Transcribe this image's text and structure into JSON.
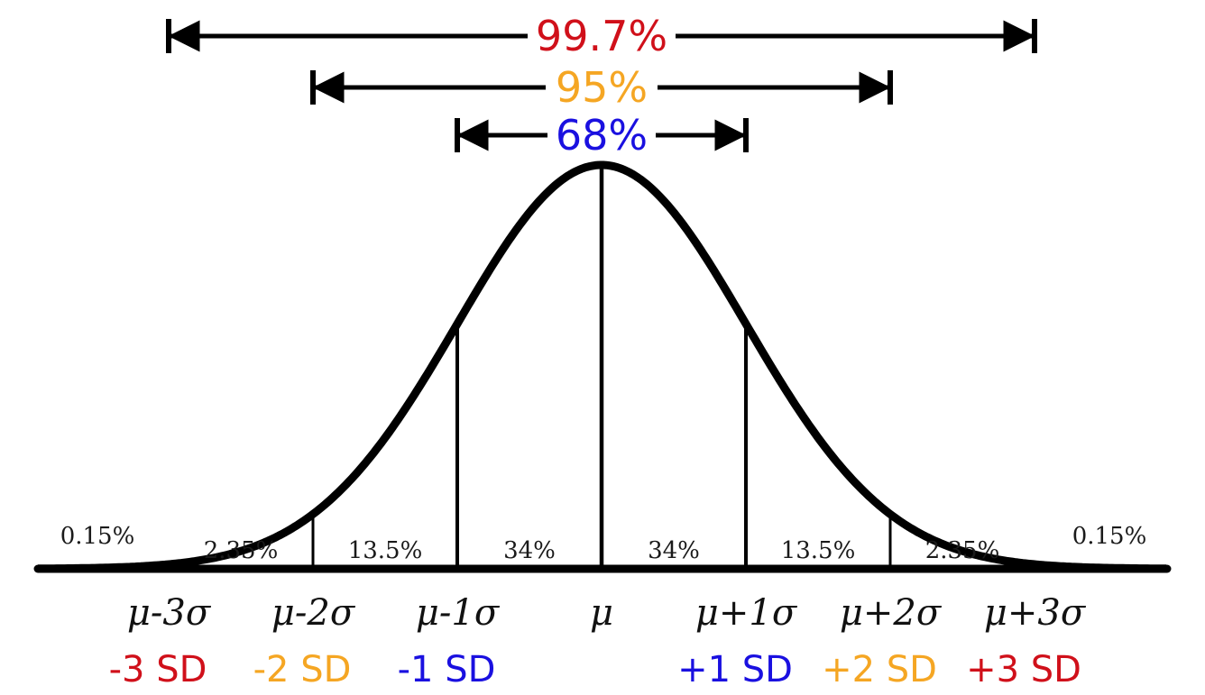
{
  "colors": {
    "curve": "#000000",
    "red": "#d0101a",
    "orange": "#f5a623",
    "blue": "#1a10e0"
  },
  "ranges": [
    {
      "label": "99.7%",
      "color": "red",
      "from": -3,
      "to": 3
    },
    {
      "label": "95%",
      "color": "orange",
      "from": -2,
      "to": 2
    },
    {
      "label": "68%",
      "color": "blue",
      "from": -1,
      "to": 1
    }
  ],
  "regions": [
    {
      "label": "0.15%"
    },
    {
      "label": "2.35%"
    },
    {
      "label": "13.5%"
    },
    {
      "label": "34%"
    },
    {
      "label": "34%"
    },
    {
      "label": "13.5%"
    },
    {
      "label": "2.35%"
    },
    {
      "label": "0.15%"
    }
  ],
  "ticks": [
    {
      "k": -3,
      "label": "μ-3σ",
      "sd": "-3 SD",
      "color": "red"
    },
    {
      "k": -2,
      "label": "μ-2σ",
      "sd": "-2 SD",
      "color": "orange"
    },
    {
      "k": -1,
      "label": "μ-1σ",
      "sd": "-1 SD",
      "color": "blue"
    },
    {
      "k": 0,
      "label": "μ",
      "sd": "",
      "color": "blue"
    },
    {
      "k": 1,
      "label": "μ+1σ",
      "sd": "+1 SD",
      "color": "blue"
    },
    {
      "k": 2,
      "label": "μ+2σ",
      "sd": "+2 SD",
      "color": "orange"
    },
    {
      "k": 3,
      "label": "μ+3σ",
      "sd": "+3 SD",
      "color": "red"
    }
  ]
}
